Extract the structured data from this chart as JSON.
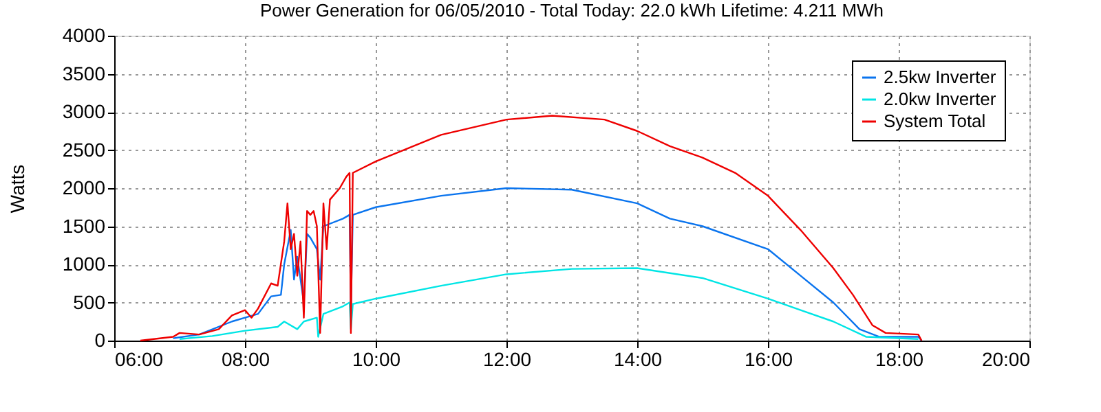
{
  "chart_data": {
    "type": "line",
    "title": "Power Generation for 06/05/2010 - Total Today: 22.0 kWh   Lifetime: 4.211 MWh",
    "ylabel": "Watts",
    "xlim": [
      6,
      20
    ],
    "xticks": [
      {
        "value": 6,
        "label": "06:00"
      },
      {
        "value": 8,
        "label": "08:00"
      },
      {
        "value": 10,
        "label": "10:00"
      },
      {
        "value": 12,
        "label": "12:00"
      },
      {
        "value": 14,
        "label": "14:00"
      },
      {
        "value": 16,
        "label": "16:00"
      },
      {
        "value": 18,
        "label": "18:00"
      },
      {
        "value": 20,
        "label": "20:00"
      }
    ],
    "ylim": [
      0,
      4000
    ],
    "yticks": [
      0,
      500,
      1000,
      1500,
      2000,
      2500,
      3000,
      3500,
      4000
    ],
    "grid": true,
    "legend": "top right",
    "marker": "none",
    "line_style": "solid",
    "series": [
      {
        "name": "2.5kw Inverter",
        "color": "#0a74ee",
        "x": [
          6.9,
          7.3,
          7.8,
          8.0,
          8.2,
          8.4,
          8.55,
          8.6,
          8.7,
          8.75,
          8.8,
          8.9,
          8.95,
          9.0,
          9.1,
          9.15,
          9.2,
          9.5,
          9.6,
          9.62,
          9.65,
          10,
          11,
          12,
          13,
          14,
          14.5,
          15,
          16,
          16.5,
          17,
          17.4,
          17.7,
          18.3,
          18.35
        ],
        "values": [
          30,
          80,
          250,
          300,
          350,
          580,
          600,
          1000,
          1450,
          800,
          1100,
          500,
          1400,
          1350,
          1200,
          800,
          1500,
          1600,
          1650,
          400,
          1650,
          1750,
          1900,
          2000,
          1980,
          1800,
          1600,
          1500,
          1200,
          850,
          500,
          150,
          50,
          50,
          0
        ]
      },
      {
        "name": "2.0kw Inverter",
        "color": "#00e5e5",
        "x": [
          7.0,
          7.5,
          8.0,
          8.5,
          8.6,
          8.8,
          8.9,
          9.1,
          9.12,
          9.2,
          9.5,
          9.6,
          9.62,
          9.65,
          10,
          11,
          12,
          13,
          14,
          15,
          16,
          16.5,
          17,
          17.5,
          18.3
        ],
        "values": [
          20,
          60,
          130,
          180,
          250,
          150,
          250,
          300,
          50,
          350,
          450,
          500,
          150,
          480,
          550,
          720,
          870,
          940,
          950,
          820,
          550,
          400,
          250,
          50,
          20
        ]
      },
      {
        "name": "System Total",
        "color": "#ee0000",
        "x": [
          6.4,
          6.9,
          7.0,
          7.3,
          7.6,
          7.8,
          8.0,
          8.1,
          8.2,
          8.4,
          8.5,
          8.6,
          8.65,
          8.7,
          8.75,
          8.8,
          8.85,
          8.9,
          8.95,
          9.0,
          9.05,
          9.1,
          9.15,
          9.2,
          9.25,
          9.3,
          9.45,
          9.55,
          9.6,
          9.62,
          9.65,
          10,
          11,
          12,
          12.7,
          13.5,
          14,
          14.5,
          15,
          15.5,
          16,
          16.5,
          17,
          17.3,
          17.6,
          17.8,
          18.3,
          18.35
        ],
        "values": [
          0,
          50,
          100,
          80,
          150,
          330,
          400,
          300,
          420,
          750,
          720,
          1300,
          1800,
          1200,
          1400,
          850,
          1300,
          300,
          1700,
          1650,
          1700,
          1500,
          100,
          1800,
          1200,
          1850,
          2000,
          2150,
          2200,
          100,
          2200,
          2350,
          2700,
          2900,
          2950,
          2900,
          2750,
          2550,
          2400,
          2200,
          1900,
          1450,
          950,
          600,
          200,
          100,
          80,
          0
        ]
      }
    ]
  }
}
